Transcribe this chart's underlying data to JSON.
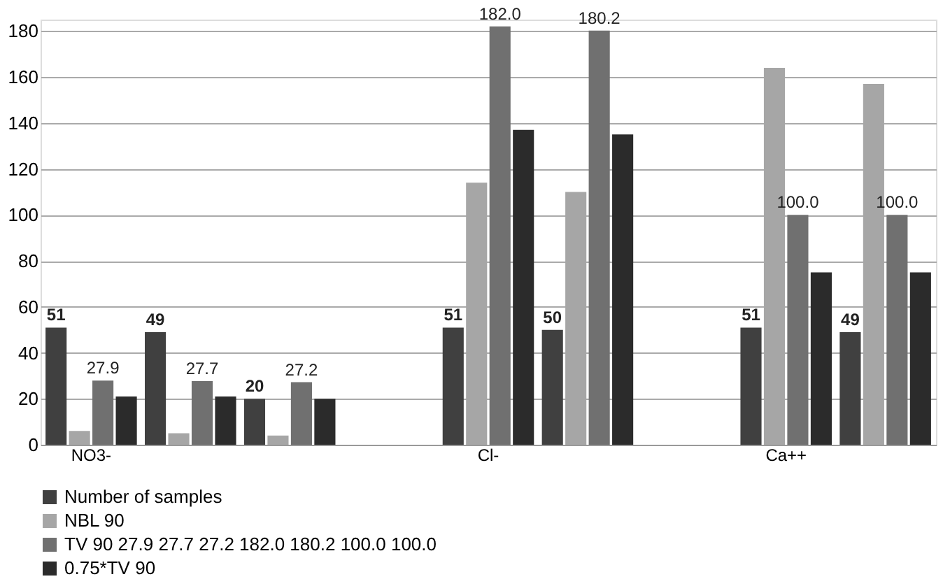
{
  "chart_data": {
    "type": "bar",
    "categories": [
      "NO3-",
      null,
      null,
      null,
      "Cl-",
      null,
      null,
      "Ca++",
      null
    ],
    "series": [
      {
        "name": "Number of samples",
        "color": "#404040",
        "values": [
          51,
          49,
          20,
          null,
          51,
          50,
          null,
          51,
          49
        ],
        "value_labels": [
          "51",
          "49",
          "20",
          null,
          "51",
          "50",
          null,
          "51",
          "49"
        ]
      },
      {
        "name": "NBL 90",
        "color": "#a6a6a6",
        "values": [
          6,
          5,
          4,
          null,
          114,
          110,
          null,
          164,
          157
        ]
      },
      {
        "name": "TV 90 27.9 27.7 27.2 182.0 180.2 100.0 100.0",
        "color": "#707070",
        "values": [
          27.9,
          27.7,
          27.2,
          null,
          182.0,
          180.2,
          null,
          100.0,
          100.0
        ],
        "value_labels": [
          "27.9",
          "27.7",
          "27.2",
          null,
          "182.0",
          "180.2",
          null,
          "100.0",
          "100.0"
        ]
      },
      {
        "name": "0.75*TV 90",
        "color": "#2b2b2b",
        "values": [
          21,
          21,
          20,
          null,
          137,
          135,
          null,
          75,
          75
        ]
      }
    ],
    "ylim": [
      0,
      185
    ],
    "yticks": [
      0,
      20,
      40,
      60,
      80,
      100,
      120,
      140,
      160,
      180
    ],
    "grid": "y",
    "legend": "bottom"
  }
}
